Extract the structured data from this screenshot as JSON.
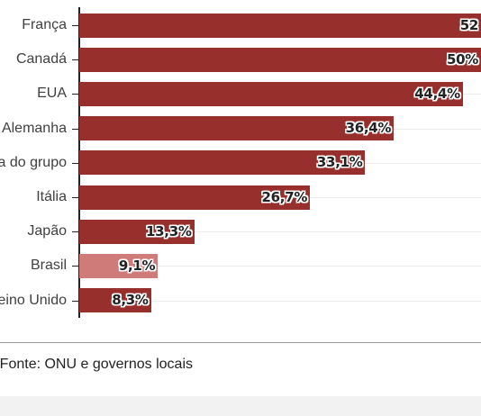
{
  "chart_data": {
    "type": "bar",
    "orientation": "horizontal",
    "categories": [
      "França",
      "Canadá",
      "EUA",
      "Alemanha",
      "Média do grupo",
      "Itália",
      "Japão",
      "Brasil",
      "Reino Unido"
    ],
    "values": [
      52.0,
      50.0,
      44.4,
      36.4,
      33.1,
      26.7,
      13.3,
      9.1,
      8.3
    ],
    "value_labels": [
      "52",
      "50%",
      "44,4%",
      "36,4%",
      "33,1%",
      "26,7%",
      "13,3%",
      "9,1%",
      "8,3%"
    ],
    "xlim": [
      0,
      46.5
    ],
    "bar_color": "#97302c",
    "highlight_color": "#ce7b79",
    "highlight_category": "Brasil",
    "grid": true
  },
  "source_text": "Fonte: ONU e governos locais"
}
